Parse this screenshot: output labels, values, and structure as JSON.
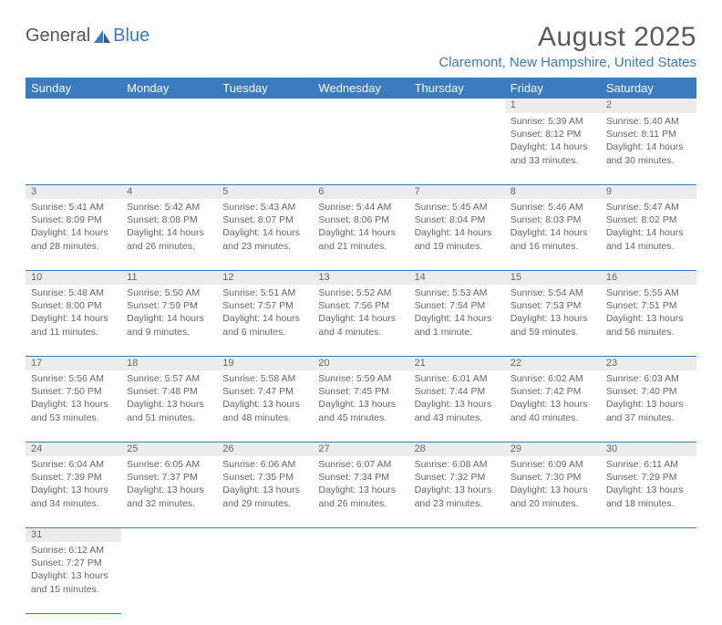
{
  "brand": {
    "part1": "General",
    "part2": "Blue"
  },
  "title": "August 2025",
  "location": "Claremont, New Hampshire, United States",
  "colors": {
    "header_bg": "#3b7bbf",
    "header_text": "#ffffff",
    "daynum_bg": "#ececec",
    "border": "#3b7bbf",
    "text": "#666666",
    "brand_blue": "#3b7bbf"
  },
  "day_headers": [
    "Sunday",
    "Monday",
    "Tuesday",
    "Wednesday",
    "Thursday",
    "Friday",
    "Saturday"
  ],
  "weeks": [
    [
      null,
      null,
      null,
      null,
      null,
      {
        "n": "1",
        "sunrise": "Sunrise: 5:39 AM",
        "sunset": "Sunset: 8:12 PM",
        "daylight": "Daylight: 14 hours and 33 minutes."
      },
      {
        "n": "2",
        "sunrise": "Sunrise: 5:40 AM",
        "sunset": "Sunset: 8:11 PM",
        "daylight": "Daylight: 14 hours and 30 minutes."
      }
    ],
    [
      {
        "n": "3",
        "sunrise": "Sunrise: 5:41 AM",
        "sunset": "Sunset: 8:09 PM",
        "daylight": "Daylight: 14 hours and 28 minutes."
      },
      {
        "n": "4",
        "sunrise": "Sunrise: 5:42 AM",
        "sunset": "Sunset: 8:08 PM",
        "daylight": "Daylight: 14 hours and 26 minutes."
      },
      {
        "n": "5",
        "sunrise": "Sunrise: 5:43 AM",
        "sunset": "Sunset: 8:07 PM",
        "daylight": "Daylight: 14 hours and 23 minutes."
      },
      {
        "n": "6",
        "sunrise": "Sunrise: 5:44 AM",
        "sunset": "Sunset: 8:06 PM",
        "daylight": "Daylight: 14 hours and 21 minutes."
      },
      {
        "n": "7",
        "sunrise": "Sunrise: 5:45 AM",
        "sunset": "Sunset: 8:04 PM",
        "daylight": "Daylight: 14 hours and 19 minutes."
      },
      {
        "n": "8",
        "sunrise": "Sunrise: 5:46 AM",
        "sunset": "Sunset: 8:03 PM",
        "daylight": "Daylight: 14 hours and 16 minutes."
      },
      {
        "n": "9",
        "sunrise": "Sunrise: 5:47 AM",
        "sunset": "Sunset: 8:02 PM",
        "daylight": "Daylight: 14 hours and 14 minutes."
      }
    ],
    [
      {
        "n": "10",
        "sunrise": "Sunrise: 5:48 AM",
        "sunset": "Sunset: 8:00 PM",
        "daylight": "Daylight: 14 hours and 11 minutes."
      },
      {
        "n": "11",
        "sunrise": "Sunrise: 5:50 AM",
        "sunset": "Sunset: 7:59 PM",
        "daylight": "Daylight: 14 hours and 9 minutes."
      },
      {
        "n": "12",
        "sunrise": "Sunrise: 5:51 AM",
        "sunset": "Sunset: 7:57 PM",
        "daylight": "Daylight: 14 hours and 6 minutes."
      },
      {
        "n": "13",
        "sunrise": "Sunrise: 5:52 AM",
        "sunset": "Sunset: 7:56 PM",
        "daylight": "Daylight: 14 hours and 4 minutes."
      },
      {
        "n": "14",
        "sunrise": "Sunrise: 5:53 AM",
        "sunset": "Sunset: 7:54 PM",
        "daylight": "Daylight: 14 hours and 1 minute."
      },
      {
        "n": "15",
        "sunrise": "Sunrise: 5:54 AM",
        "sunset": "Sunset: 7:53 PM",
        "daylight": "Daylight: 13 hours and 59 minutes."
      },
      {
        "n": "16",
        "sunrise": "Sunrise: 5:55 AM",
        "sunset": "Sunset: 7:51 PM",
        "daylight": "Daylight: 13 hours and 56 minutes."
      }
    ],
    [
      {
        "n": "17",
        "sunrise": "Sunrise: 5:56 AM",
        "sunset": "Sunset: 7:50 PM",
        "daylight": "Daylight: 13 hours and 53 minutes."
      },
      {
        "n": "18",
        "sunrise": "Sunrise: 5:57 AM",
        "sunset": "Sunset: 7:48 PM",
        "daylight": "Daylight: 13 hours and 51 minutes."
      },
      {
        "n": "19",
        "sunrise": "Sunrise: 5:58 AM",
        "sunset": "Sunset: 7:47 PM",
        "daylight": "Daylight: 13 hours and 48 minutes."
      },
      {
        "n": "20",
        "sunrise": "Sunrise: 5:59 AM",
        "sunset": "Sunset: 7:45 PM",
        "daylight": "Daylight: 13 hours and 45 minutes."
      },
      {
        "n": "21",
        "sunrise": "Sunrise: 6:01 AM",
        "sunset": "Sunset: 7:44 PM",
        "daylight": "Daylight: 13 hours and 43 minutes."
      },
      {
        "n": "22",
        "sunrise": "Sunrise: 6:02 AM",
        "sunset": "Sunset: 7:42 PM",
        "daylight": "Daylight: 13 hours and 40 minutes."
      },
      {
        "n": "23",
        "sunrise": "Sunrise: 6:03 AM",
        "sunset": "Sunset: 7:40 PM",
        "daylight": "Daylight: 13 hours and 37 minutes."
      }
    ],
    [
      {
        "n": "24",
        "sunrise": "Sunrise: 6:04 AM",
        "sunset": "Sunset: 7:39 PM",
        "daylight": "Daylight: 13 hours and 34 minutes."
      },
      {
        "n": "25",
        "sunrise": "Sunrise: 6:05 AM",
        "sunset": "Sunset: 7:37 PM",
        "daylight": "Daylight: 13 hours and 32 minutes."
      },
      {
        "n": "26",
        "sunrise": "Sunrise: 6:06 AM",
        "sunset": "Sunset: 7:35 PM",
        "daylight": "Daylight: 13 hours and 29 minutes."
      },
      {
        "n": "27",
        "sunrise": "Sunrise: 6:07 AM",
        "sunset": "Sunset: 7:34 PM",
        "daylight": "Daylight: 13 hours and 26 minutes."
      },
      {
        "n": "28",
        "sunrise": "Sunrise: 6:08 AM",
        "sunset": "Sunset: 7:32 PM",
        "daylight": "Daylight: 13 hours and 23 minutes."
      },
      {
        "n": "29",
        "sunrise": "Sunrise: 6:09 AM",
        "sunset": "Sunset: 7:30 PM",
        "daylight": "Daylight: 13 hours and 20 minutes."
      },
      {
        "n": "30",
        "sunrise": "Sunrise: 6:11 AM",
        "sunset": "Sunset: 7:29 PM",
        "daylight": "Daylight: 13 hours and 18 minutes."
      }
    ],
    [
      {
        "n": "31",
        "sunrise": "Sunrise: 6:12 AM",
        "sunset": "Sunset: 7:27 PM",
        "daylight": "Daylight: 13 hours and 15 minutes."
      },
      null,
      null,
      null,
      null,
      null,
      null
    ]
  ]
}
